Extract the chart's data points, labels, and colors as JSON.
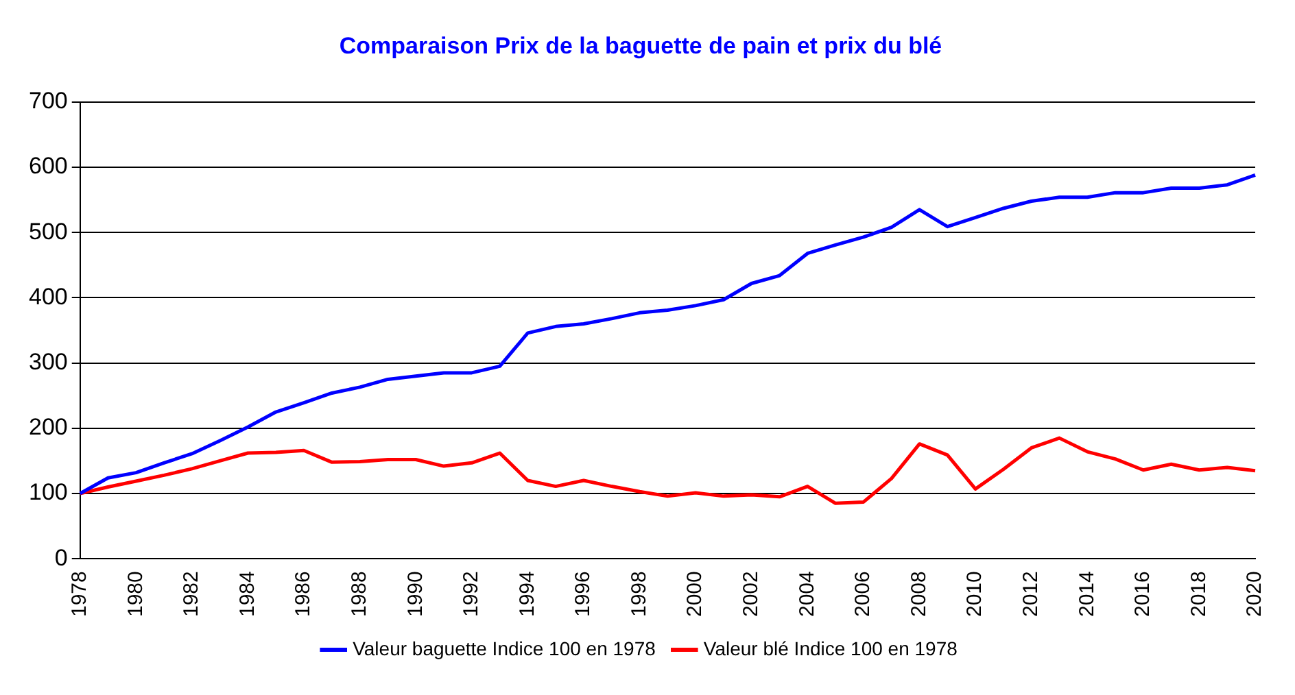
{
  "chart_data": {
    "type": "line",
    "title": "Comparaison Prix de la baguette de pain et prix du blé",
    "categories": [
      "1978",
      null,
      "1980",
      null,
      "1982",
      null,
      "1984",
      null,
      "1986",
      null,
      "1988",
      null,
      "1990",
      null,
      "1992",
      null,
      "1994",
      null,
      "1996",
      null,
      "1998",
      null,
      "2000",
      null,
      "2002",
      null,
      "2004",
      null,
      "2006",
      null,
      "2008",
      null,
      "2010",
      null,
      "2012",
      null,
      "2014",
      null,
      "2016",
      null,
      "2018",
      null,
      "2020"
    ],
    "series": [
      {
        "name": "Valeur baguette Indice 100 en 1978",
        "color": "#0000ff",
        "values": [
          100,
          124,
          132,
          147,
          161,
          181,
          202,
          225,
          239,
          254,
          263,
          275,
          280,
          285,
          285,
          295,
          346,
          356,
          360,
          368,
          377,
          381,
          388,
          397,
          422,
          434,
          468,
          481,
          493,
          508,
          535,
          509,
          523,
          537,
          548,
          554,
          554,
          561,
          561,
          568,
          568,
          573,
          588
        ]
      },
      {
        "name": "Valeur blé Indice 100 en 1978",
        "color": "#ff0000",
        "values": [
          100,
          110,
          119,
          128,
          138,
          150,
          162,
          163,
          166,
          148,
          149,
          152,
          152,
          142,
          147,
          162,
          120,
          111,
          120,
          111,
          103,
          96,
          101,
          96,
          98,
          95,
          111,
          85,
          87,
          123,
          176,
          159,
          107,
          137,
          170,
          185,
          164,
          153,
          136,
          145,
          136,
          140,
          135
        ]
      }
    ],
    "ylim": [
      0,
      700
    ],
    "yticks": [
      0,
      100,
      200,
      300,
      400,
      500,
      600,
      700
    ],
    "grid": "y",
    "legend": "bottom",
    "marker": "none",
    "line_style": "solid"
  }
}
